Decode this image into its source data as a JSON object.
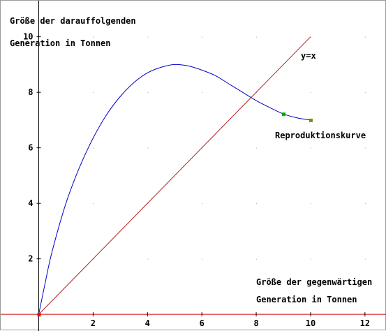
{
  "chart_data": {
    "type": "line",
    "ylabel_line1": "Größe der darauffolgenden",
    "ylabel_line2": "Generation in Tonnen",
    "xlabel_line1": "Größe der gegenwärtigen",
    "xlabel_line2": "Generation in Tonnen",
    "xlim": [
      -1.4,
      12.8
    ],
    "ylim": [
      -0.6,
      11.3
    ],
    "x_ticks": [
      2,
      4,
      6,
      8,
      10,
      12
    ],
    "y_ticks": [
      2,
      4,
      6,
      8,
      10
    ],
    "grid": "dotted points",
    "series": [
      {
        "name": "Reproduktionskurve",
        "color": "#0000cc",
        "x": [
          0,
          0.25,
          0.5,
          1,
          1.5,
          2,
          2.5,
          3,
          3.5,
          4,
          4.5,
          5,
          5.5,
          6,
          6.5,
          7,
          7.5,
          8,
          8.5,
          9,
          9.5,
          10
        ],
        "y": [
          0,
          1.2,
          2.3,
          4.0,
          5.3,
          6.35,
          7.2,
          7.85,
          8.35,
          8.7,
          8.9,
          9.0,
          8.95,
          8.8,
          8.6,
          8.3,
          8.0,
          7.7,
          7.45,
          7.22,
          7.08,
          7.0
        ]
      },
      {
        "name": "y=x",
        "color": "#aa2222",
        "x": [
          0,
          10
        ],
        "y": [
          0,
          10
        ]
      }
    ],
    "points": [
      {
        "x": 0,
        "y": 0,
        "color": "#ff0000"
      },
      {
        "x": 9,
        "y": 7.22,
        "color": "#00aa00"
      },
      {
        "x": 10,
        "y": 7.0,
        "color": "#888800"
      }
    ],
    "axis_color": "#000000",
    "xaxis_line_color": "#cc0000"
  }
}
